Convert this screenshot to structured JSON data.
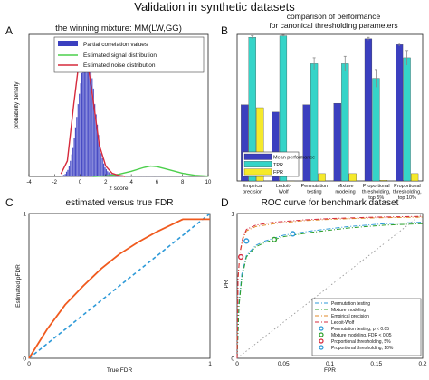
{
  "figure": {
    "title": "Validation in synthetic datasets",
    "panel_letters": [
      "A",
      "B",
      "C",
      "D"
    ]
  },
  "chart_data": [
    {
      "panel": "A",
      "type": "histogram",
      "title": "the winning mixture: MM(LW,GG)",
      "xlabel": "z score",
      "ylabel": "probability density",
      "xlim": [
        -4,
        10
      ],
      "ylim": [
        0,
        0.55
      ],
      "xticks": [
        -4,
        -2,
        0,
        2,
        4,
        6,
        8,
        10
      ],
      "yticks": [],
      "legend_position": "top-right",
      "bins": {
        "start": -1.5,
        "width": 0.1,
        "densities": [
          0.002,
          0.004,
          0.006,
          0.01,
          0.018,
          0.025,
          0.04,
          0.06,
          0.085,
          0.11,
          0.15,
          0.19,
          0.23,
          0.28,
          0.32,
          0.36,
          0.4,
          0.42,
          0.45,
          0.41,
          0.52,
          0.43,
          0.47,
          0.4,
          0.38,
          0.34,
          0.28,
          0.24,
          0.2,
          0.16,
          0.12,
          0.09,
          0.07,
          0.05,
          0.035,
          0.028,
          0.02,
          0.016,
          0.012,
          0.01,
          0.008,
          0.007,
          0.006,
          0.006,
          0.005,
          0.005,
          0.004,
          0.004,
          0.004,
          0.003,
          0.003,
          0.003,
          0.003,
          0.003,
          0.003,
          0.002,
          0.002,
          0.002,
          0.002,
          0.002,
          0.002,
          0.002,
          0.002,
          0.002,
          0.002,
          0.002,
          0.002,
          0.002,
          0.002,
          0.002,
          0.002,
          0.002,
          0.002,
          0.002,
          0.002,
          0.002,
          0.002,
          0.002,
          0.002,
          0.002,
          0.002,
          0.002,
          0.002,
          0.002,
          0.002,
          0.002,
          0.002,
          0.002,
          0.002,
          0.002,
          0.002,
          0.002,
          0.002,
          0.002,
          0.002,
          0.002,
          0.002,
          0.002,
          0.002,
          0.002
        ]
      },
      "series": [
        {
          "name": "Partial correlation values",
          "color": "#3b3fbf"
        },
        {
          "name": "Estimated signal distribution",
          "color": "#4ccf4c",
          "x": [
            1.0,
            2.0,
            3.0,
            4.0,
            5.0,
            5.5,
            6.0,
            7.0,
            8.0,
            9.0,
            10.0
          ],
          "y": [
            0.0,
            0.002,
            0.008,
            0.02,
            0.035,
            0.04,
            0.038,
            0.025,
            0.012,
            0.004,
            0.001
          ]
        },
        {
          "name": "Estimated noise distribution",
          "color": "#d62a3c",
          "x": [
            -1.5,
            -1.0,
            -0.5,
            0.0,
            0.3,
            0.5,
            1.0,
            1.5,
            2.0,
            2.5,
            3.0,
            3.5
          ],
          "y": [
            0.01,
            0.06,
            0.28,
            0.48,
            0.5,
            0.47,
            0.3,
            0.12,
            0.04,
            0.012,
            0.004,
            0.0
          ]
        }
      ]
    },
    {
      "panel": "B",
      "type": "bar",
      "title": "comparison of performance\nfor canonical thresholding parameters",
      "categories": [
        "Empirical\nprecision",
        "Ledoit-\nWolf",
        "Permutation\ntesting",
        "Mixture\nmodeling",
        "Proportional\nthresholding,\ntop 5%",
        "Proportional\nthresholding,\ntop 10%"
      ],
      "ylim": [
        0,
        1
      ],
      "yticks": [],
      "legend_position": "bottom-left",
      "series": [
        {
          "name": "Mean performance",
          "color": "#3b3fbf",
          "values": [
            0.52,
            0.47,
            0.52,
            0.53,
            0.97,
            0.93
          ],
          "errors": [
            0.0,
            0.0,
            0.0,
            0.0,
            0.01,
            0.01
          ]
        },
        {
          "name": "TPR",
          "color": "#35d4c8",
          "values": [
            0.98,
            0.99,
            0.8,
            0.8,
            0.7,
            0.84
          ],
          "errors": [
            0.01,
            0.005,
            0.04,
            0.05,
            0.06,
            0.05
          ]
        },
        {
          "name": "FPR",
          "color": "#f5e92a",
          "values": [
            0.5,
            0.0,
            0.05,
            0.05,
            0.005,
            0.05
          ],
          "errors": [
            0.0,
            0.0,
            0.0,
            0.0,
            0.0,
            0.0
          ]
        }
      ]
    },
    {
      "panel": "C",
      "type": "line",
      "title": "estimated versus true FDR",
      "xlabel": "True FDR",
      "ylabel": "Estimated pFDR",
      "xlim": [
        0,
        1
      ],
      "ylim": [
        0,
        1
      ],
      "xticks": [
        0,
        1
      ],
      "yticks": [
        0,
        1
      ],
      "series": [
        {
          "name": "",
          "color": "#f05a1e",
          "style": "solid",
          "x": [
            0.0,
            0.05,
            0.1,
            0.2,
            0.3,
            0.4,
            0.5,
            0.6,
            0.7,
            0.8,
            0.85,
            0.9,
            1.0
          ],
          "y": [
            0.0,
            0.1,
            0.2,
            0.37,
            0.5,
            0.62,
            0.72,
            0.8,
            0.87,
            0.93,
            0.96,
            0.96,
            0.96
          ]
        },
        {
          "name": "",
          "color": "#2e9ad8",
          "style": "dashed",
          "x": [
            0,
            1
          ],
          "y": [
            0,
            1
          ]
        }
      ]
    },
    {
      "panel": "D",
      "type": "line",
      "title": "ROC curve for benchmark dataset",
      "xlabel": "FPR",
      "ylabel": "TPR",
      "xlim": [
        0,
        0.2
      ],
      "ylim": [
        0,
        1
      ],
      "xticks": [
        0,
        0.05,
        0.1,
        0.15,
        0.2
      ],
      "yticks": [
        0,
        1
      ],
      "legend_position": "bottom-right",
      "series": [
        {
          "name": "Permutation testing",
          "color": "#2e9ad8",
          "style": "dashdot",
          "x": [
            0.0,
            0.002,
            0.005,
            0.01,
            0.02,
            0.03,
            0.05,
            0.08,
            0.12,
            0.16,
            0.2
          ],
          "y": [
            0.0,
            0.38,
            0.58,
            0.71,
            0.78,
            0.81,
            0.85,
            0.88,
            0.91,
            0.93,
            0.94
          ]
        },
        {
          "name": "Mixture modeling",
          "color": "#2ca02c",
          "style": "dashdot",
          "x": [
            0.0,
            0.002,
            0.005,
            0.01,
            0.02,
            0.03,
            0.05,
            0.08,
            0.12,
            0.16,
            0.2
          ],
          "y": [
            0.0,
            0.36,
            0.55,
            0.7,
            0.77,
            0.8,
            0.84,
            0.87,
            0.9,
            0.92,
            0.93
          ]
        },
        {
          "name": "Empirical precision",
          "color": "#e08a2a",
          "style": "dashdot",
          "x": [
            0.0,
            0.001,
            0.003,
            0.006,
            0.01,
            0.02,
            0.04,
            0.07,
            0.1,
            0.15,
            0.2
          ],
          "y": [
            0.0,
            0.55,
            0.72,
            0.82,
            0.88,
            0.91,
            0.93,
            0.95,
            0.96,
            0.97,
            0.975
          ]
        },
        {
          "name": "Ledoit-Wolf",
          "color": "#d62a3c",
          "style": "dashdot",
          "x": [
            0.0,
            0.001,
            0.003,
            0.006,
            0.01,
            0.02,
            0.04,
            0.07,
            0.1,
            0.15,
            0.2
          ],
          "y": [
            0.0,
            0.56,
            0.73,
            0.83,
            0.89,
            0.92,
            0.94,
            0.955,
            0.965,
            0.975,
            0.98
          ]
        },
        {
          "name": "",
          "color": "#9a9a9a",
          "style": "dotted",
          "x": [
            0,
            0.2
          ],
          "y": [
            0,
            1
          ]
        }
      ],
      "points": [
        {
          "name": "Permutation testing, p < 0.05",
          "color": "#2e9ad8",
          "x": 0.06,
          "y": 0.86
        },
        {
          "name": "Mixture modeling, FDR < 0.05",
          "color": "#2ca02c",
          "x": 0.04,
          "y": 0.82
        },
        {
          "name": "Proportional thresholding, 5%",
          "color": "#d62a3c",
          "x": 0.004,
          "y": 0.7
        },
        {
          "name": "Proportional thresholding, 10%",
          "color": "#2e9ad8",
          "x": 0.01,
          "y": 0.81
        }
      ]
    }
  ]
}
